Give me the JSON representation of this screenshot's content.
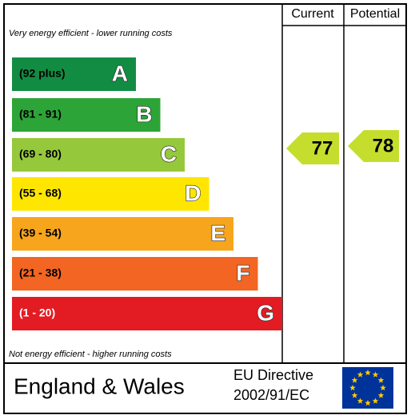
{
  "chart_data": {
    "type": "epc",
    "current_label": "Current",
    "potential_label": "Potential",
    "top_note": "Very energy efficient - lower running costs",
    "bottom_note": "Not energy efficient - higher running costs",
    "bands": [
      {
        "range": "(92 plus)",
        "letter": "A",
        "color": "#138c43"
      },
      {
        "range": "(81 - 91)",
        "letter": "B",
        "color": "#2da437"
      },
      {
        "range": "(69 - 80)",
        "letter": "C",
        "color": "#96c83c"
      },
      {
        "range": "(55 - 68)",
        "letter": "D",
        "color": "#ffe600"
      },
      {
        "range": "(39 - 54)",
        "letter": "E",
        "color": "#f7a51d"
      },
      {
        "range": "(21 - 38)",
        "letter": "F",
        "color": "#f26522"
      },
      {
        "range": "(1 - 20)",
        "letter": "G",
        "color": "#e31b23"
      }
    ],
    "current": 77,
    "potential": 78,
    "rating_color": "#c5de2e",
    "region": "England & Wales",
    "directive": [
      "EU Directive",
      "2002/91/EC"
    ]
  }
}
